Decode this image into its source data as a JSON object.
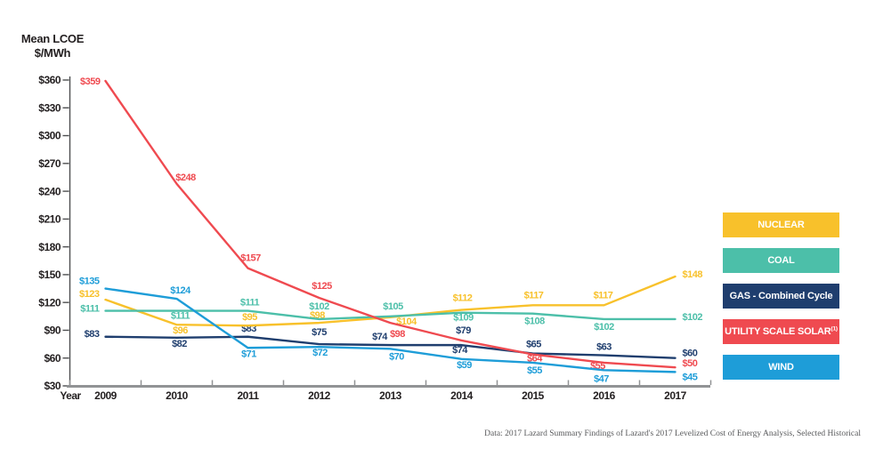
{
  "y_axis": {
    "title_line1": "Mean LCOE",
    "title_line2": "$/MWh",
    "tick_values": [
      360,
      330,
      300,
      270,
      240,
      210,
      180,
      150,
      120,
      90,
      60,
      30
    ],
    "tick_labels": [
      "$360",
      "$330",
      "$300",
      "$270",
      "$240",
      "$210",
      "$180",
      "$150",
      "$120",
      "$90",
      "$60",
      "$30"
    ]
  },
  "x_axis": {
    "label": "Year",
    "years": [
      "2009",
      "2010",
      "2011",
      "2012",
      "2013",
      "2014",
      "2015",
      "2016",
      "2017"
    ]
  },
  "chart_data": {
    "type": "line",
    "x": [
      2009,
      2010,
      2011,
      2012,
      2013,
      2014,
      2015,
      2016,
      2017
    ],
    "xlabel": "Year",
    "ylabel": "Mean LCOE $/MWh",
    "ylim": [
      30,
      360
    ],
    "grid": false,
    "legend_position": "right",
    "point_label_prefix": "$",
    "series": [
      {
        "name": "NUCLEAR",
        "color": "#F8C12B",
        "values": [
          123,
          96,
          95,
          98,
          104,
          112,
          117,
          117,
          148
        ]
      },
      {
        "name": "COAL",
        "color": "#4CBFA9",
        "values": [
          111,
          111,
          111,
          102,
          105,
          109,
          108,
          102,
          102
        ]
      },
      {
        "name": "GAS - Combined Cycle",
        "color": "#1F3E6E",
        "values": [
          83,
          82,
          83,
          75,
          74,
          74,
          65,
          63,
          60
        ]
      },
      {
        "name": "UTILITY SCALE SOLAR",
        "superscript": "(1)",
        "color": "#EF4A50",
        "values": [
          359,
          248,
          157,
          125,
          98,
          79,
          64,
          55,
          50
        ]
      },
      {
        "name": "WIND",
        "color": "#1E9DD8",
        "values": [
          135,
          124,
          71,
          72,
          70,
          59,
          55,
          47,
          45
        ]
      }
    ],
    "label_color_overrides": [
      {
        "series_index": 3,
        "year_index": 5,
        "color": "#1F3E6E"
      }
    ]
  },
  "colors": {
    "axis_gray": "#919395",
    "axis_dark": "#4d4e50",
    "text": "#231f20",
    "footer_text": "#58595b"
  },
  "footer": {
    "text": "Data: 2017 Lazard Summary Findings of Lazard's 2017 Levelized Cost of Energy Analysis, Selected Historical"
  }
}
